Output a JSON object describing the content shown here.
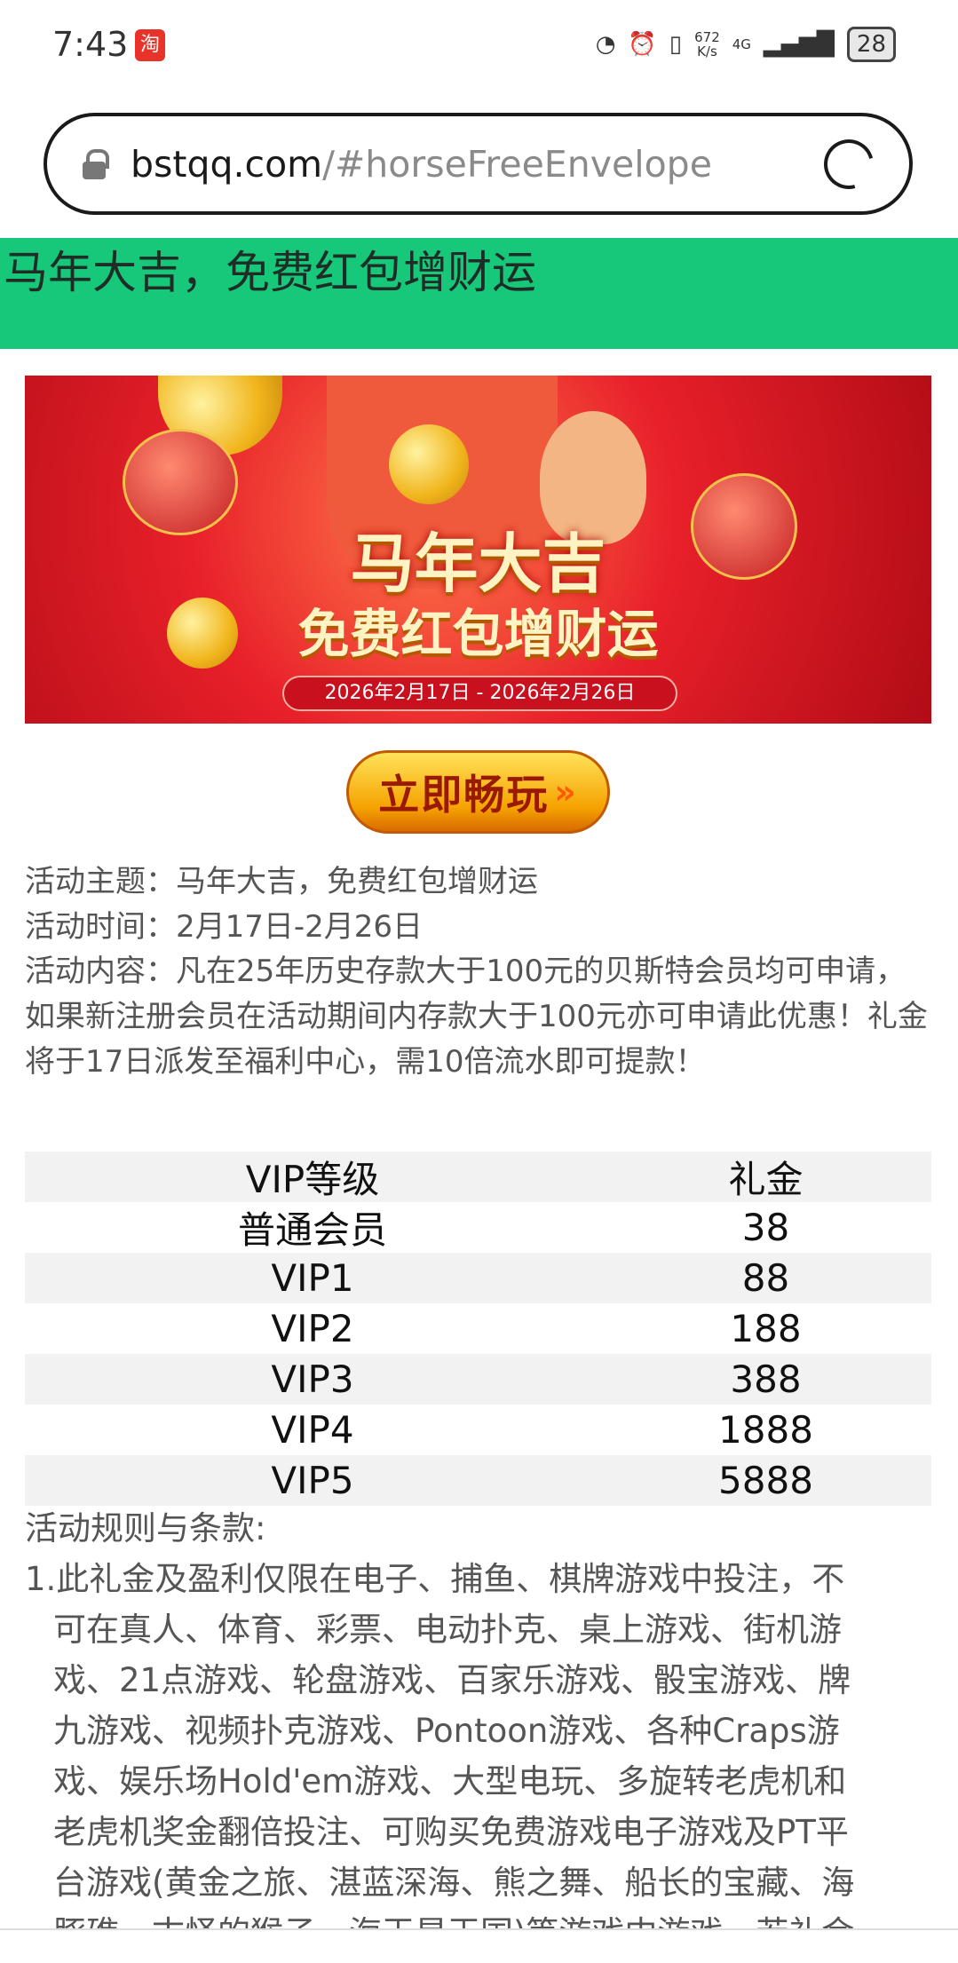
{
  "status_bar": {
    "time": "7:43",
    "app_icon": "淘",
    "speed_value": "672",
    "speed_unit": "K/s",
    "network": "4G",
    "battery": "28"
  },
  "browser": {
    "url_host": "bstqq.com",
    "url_path": "/#horseFreeEnvelope"
  },
  "header": {
    "title": "马年大吉，免费红包增财运",
    "color": "#17c77a"
  },
  "banner": {
    "title1": "马年大吉",
    "title2": "免费红包增财运",
    "dates": "2026年2月17日 - 2026年2月26日"
  },
  "play_button": {
    "label": "立即畅玩",
    "arrows": "»"
  },
  "intro": {
    "lines": [
      "活动主题：马年大吉，免费红包增财运",
      "活动时间：2月17日-2月26日",
      "活动内容：凡在25年历史存款大于100元的贝斯特会员均可申请，如果新注册会员在活动期间内存款大于100元亦可申请此优惠！礼金将于17日派发至福利中心，需10倍流水即可提款！"
    ]
  },
  "table": {
    "headers": [
      "VIP等级",
      "礼金"
    ],
    "rows": [
      [
        "普通会员",
        "38"
      ],
      [
        "VIP1",
        "88"
      ],
      [
        "VIP2",
        "188"
      ],
      [
        "VIP3",
        "388"
      ],
      [
        "VIP4",
        "1888"
      ],
      [
        "VIP5",
        "5888"
      ]
    ]
  },
  "rules": {
    "heading": "活动规则与条款:",
    "lines": [
      "1.此礼金及盈利仅限在电子、捕鱼、棋牌游戏中投注，不",
      "可在真人、体育、彩票、电动扑克、桌上游戏、街机游",
      "戏、21点游戏、轮盘游戏、百家乐游戏、骰宝游戏、牌",
      "九游戏、视频扑克游戏、Pontoon游戏、各种Craps游",
      "戏、娱乐场Hold'em游戏、大型电玩、多旋转老虎机和",
      "老虎机奖金翻倍投注、可购买免费游戏电子游戏及PT平",
      "台游戏(黄金之旅、湛蓝深海、熊之舞、船长的宝藏、海",
      "豚礁、古怪的猴子、海王星王国)等游戏中游戏，若礼金"
    ]
  }
}
